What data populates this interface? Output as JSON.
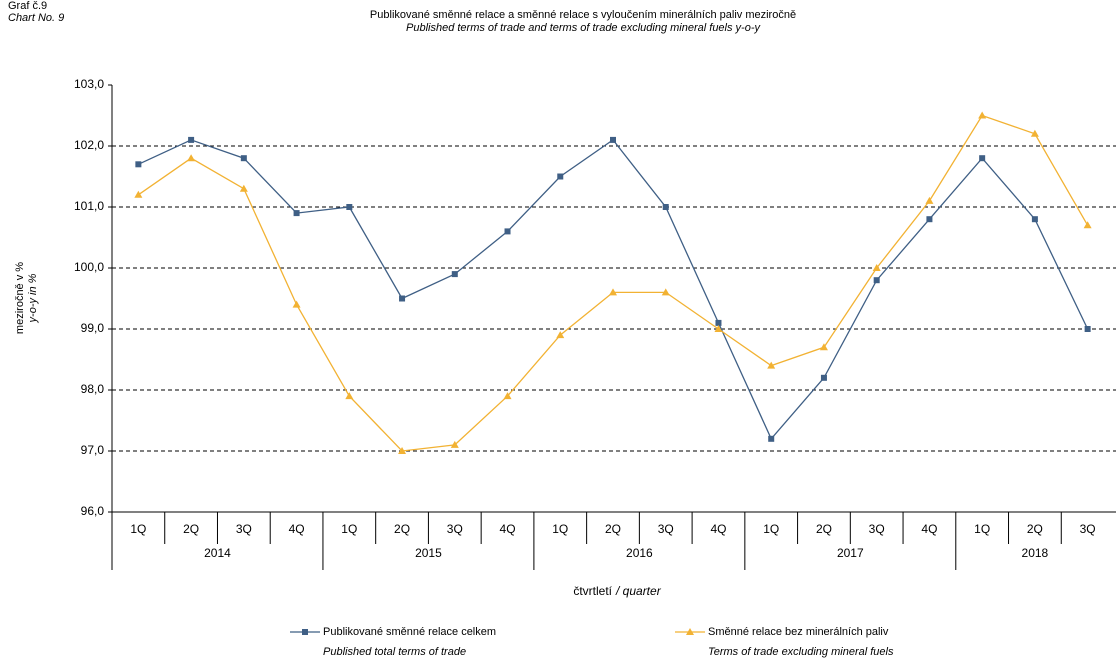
{
  "chart_data": {
    "type": "line",
    "label": "Graf č.9",
    "label_en": "Chart No. 9",
    "title": "Publikované směnné relace a směnné relace s vyloučením minerálních paliv meziročně",
    "subtitle": "Published terms of trade and terms of trade excluding mineral fuels y-o-y",
    "ylabel": "meziročně v %",
    "ylabel_en": "y-o-y in %",
    "xlabel": "čtvrtletí",
    "xlabel_en": "/ quarter",
    "categories": [
      "1Q",
      "2Q",
      "3Q",
      "4Q",
      "1Q",
      "2Q",
      "3Q",
      "4Q",
      "1Q",
      "2Q",
      "3Q",
      "4Q",
      "1Q",
      "2Q",
      "3Q",
      "4Q",
      "1Q",
      "2Q",
      "3Q"
    ],
    "years": [
      "2014",
      "2015",
      "2016",
      "2017",
      "2018"
    ],
    "series": [
      {
        "name": "Publikované směnné relace celkem",
        "name_en": "Published total terms of trade",
        "color": "#3f5f85",
        "marker": "square",
        "values": [
          101.7,
          102.1,
          101.8,
          100.9,
          101.0,
          99.5,
          99.9,
          100.6,
          101.5,
          102.1,
          101.0,
          99.1,
          97.2,
          98.2,
          99.8,
          100.8,
          101.8,
          100.8,
          99.0
        ]
      },
      {
        "name": "Směnné relace bez minerálních paliv",
        "name_en": "Terms of trade excluding mineral fuels",
        "color": "#f2b233",
        "marker": "triangle",
        "values": [
          101.2,
          101.8,
          101.3,
          99.4,
          97.9,
          97.0,
          97.1,
          97.9,
          98.9,
          99.6,
          99.6,
          99.0,
          98.4,
          98.7,
          100.0,
          101.1,
          102.5,
          102.2,
          100.7
        ]
      }
    ],
    "ylim": [
      96,
      103
    ],
    "yticks": [
      {
        "value": 96,
        "label": "96,0"
      },
      {
        "value": 97,
        "label": "97,0"
      },
      {
        "value": 98,
        "label": "98,0"
      },
      {
        "value": 99,
        "label": "99,0"
      },
      {
        "value": 100,
        "label": "100,0"
      },
      {
        "value": 101,
        "label": "101,0"
      },
      {
        "value": 102,
        "label": "102,0"
      },
      {
        "value": 103,
        "label": "103,0"
      }
    ],
    "grid": true
  }
}
